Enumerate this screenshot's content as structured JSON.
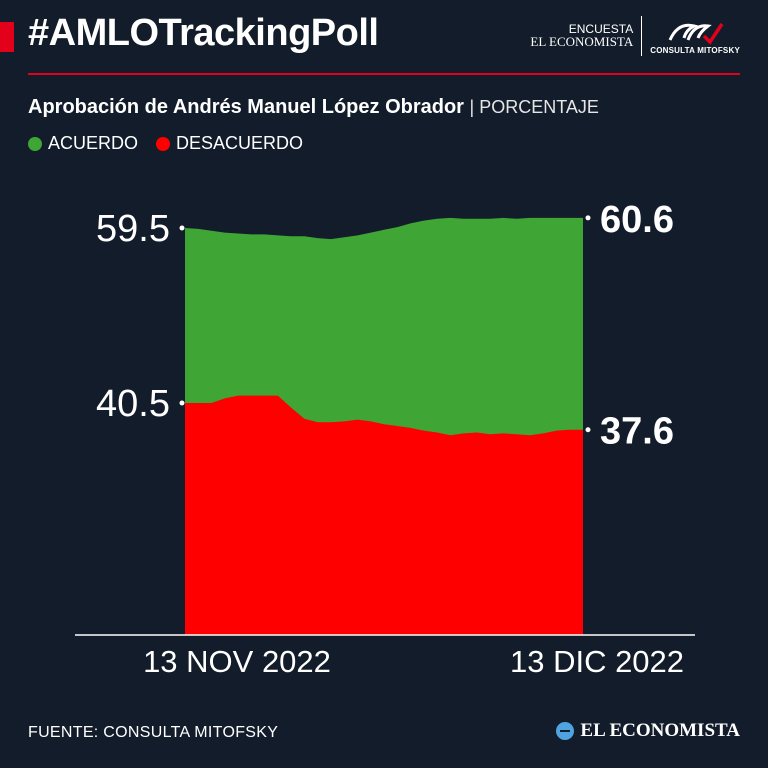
{
  "header": {
    "hashtag": "#AMLOTrackingPoll",
    "brand_line1": "ENCUESTA",
    "brand_line2": "EL ECONOMISTA",
    "partner_label": "CONSULTA MITOFSKY"
  },
  "subtitle": {
    "main": "Aprobación de Andrés Manuel López Obrador",
    "unit": "| PORCENTAJE"
  },
  "legend": [
    {
      "label": "ACUERDO",
      "color": "#3fa535"
    },
    {
      "label": "DESACUERDO",
      "color": "#ff0000"
    }
  ],
  "footer": {
    "source": "FUENTE: CONSULTA MITOFSKY",
    "brand": "EL ECONOMISTA"
  },
  "chart_data": {
    "type": "area",
    "x_labels": [
      "13 NOV 2022",
      "13 DIC 2022"
    ],
    "x_start": "2022-11-13",
    "x_end": "2022-12-13",
    "y_ticks": [
      59.5,
      40.5
    ],
    "end_labels": {
      "acuerdo": "60.6",
      "desacuerdo": "37.6"
    },
    "series": [
      {
        "name": "ACUERDO",
        "color": "#3fa535",
        "values": [
          59.5,
          59.4,
          59.2,
          59.0,
          58.9,
          58.8,
          58.8,
          58.7,
          58.6,
          58.6,
          58.4,
          58.3,
          58.5,
          58.7,
          59.0,
          59.3,
          59.6,
          60.0,
          60.3,
          60.5,
          60.6,
          60.5,
          60.5,
          60.5,
          60.6,
          60.5,
          60.6,
          60.6,
          60.6,
          60.6,
          60.6
        ]
      },
      {
        "name": "DESACUERDO",
        "color": "#ff0000",
        "values": [
          40.5,
          40.5,
          40.5,
          41.0,
          41.3,
          41.3,
          41.3,
          41.3,
          40.0,
          38.8,
          38.4,
          38.4,
          38.5,
          38.7,
          38.5,
          38.2,
          38.0,
          37.8,
          37.5,
          37.3,
          37.0,
          37.2,
          37.3,
          37.1,
          37.2,
          37.1,
          37.0,
          37.2,
          37.5,
          37.6,
          37.6
        ]
      }
    ]
  }
}
